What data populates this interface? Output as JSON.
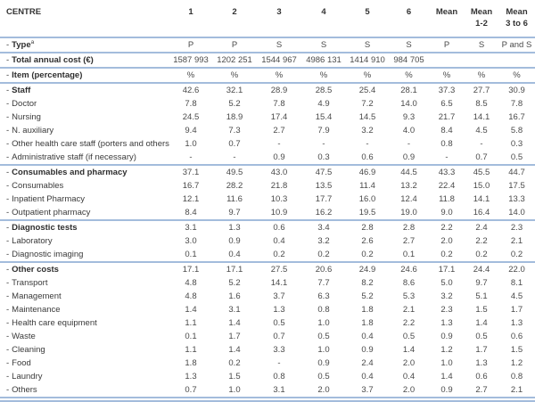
{
  "table": {
    "dash_prefix": "-",
    "corner_label": "CENTRE",
    "columns": [
      {
        "line1": "1",
        "line2": ""
      },
      {
        "line1": "2",
        "line2": ""
      },
      {
        "line1": "3",
        "line2": ""
      },
      {
        "line1": "4",
        "line2": ""
      },
      {
        "line1": "5",
        "line2": ""
      },
      {
        "line1": "6",
        "line2": ""
      },
      {
        "line1": "Mean",
        "line2": ""
      },
      {
        "line1": "Mean",
        "line2": "1-2"
      },
      {
        "line1": "Mean",
        "line2": "3 to 6"
      }
    ],
    "rows": [
      {
        "label": "Type",
        "sup": "a",
        "bold": true,
        "sep": true,
        "values": [
          "P",
          "P",
          "S",
          "S",
          "S",
          "S",
          "P",
          "S",
          "P and S"
        ]
      },
      {
        "label": "Total annual cost (€)",
        "bold": true,
        "sep": true,
        "values": [
          "1587 993",
          "1202 251",
          "1544 967",
          "4986 131",
          "1414 910",
          "984 705",
          "",
          "",
          ""
        ]
      },
      {
        "label": "Item (percentage)",
        "bold": true,
        "sep": true,
        "values": [
          "%",
          "%",
          "%",
          "%",
          "%",
          "%",
          "%",
          "%",
          "%"
        ]
      },
      {
        "label": "Staff",
        "bold": true,
        "values": [
          "42.6",
          "32.1",
          "28.9",
          "28.5",
          "25.4",
          "28.1",
          "37.3",
          "27.7",
          "30.9"
        ]
      },
      {
        "label": "Doctor",
        "values": [
          "7.8",
          "5.2",
          "7.8",
          "4.9",
          "7.2",
          "14.0",
          "6.5",
          "8.5",
          "7.8"
        ]
      },
      {
        "label": "Nursing",
        "values": [
          "24.5",
          "18.9",
          "17.4",
          "15.4",
          "14.5",
          "9.3",
          "21.7",
          "14.1",
          "16.7"
        ]
      },
      {
        "label": "N. auxiliary",
        "values": [
          "9.4",
          "7.3",
          "2.7",
          "7.9",
          "3.2",
          "4.0",
          "8.4",
          "4.5",
          "5.8"
        ]
      },
      {
        "label": "Other health care staff (porters and others)",
        "values": [
          "1.0",
          "0.7",
          "-",
          "-",
          "-",
          "-",
          "0.8",
          "-",
          "0.3"
        ]
      },
      {
        "label": "Administrative staff (if necessary)",
        "sep": true,
        "values": [
          "-",
          "-",
          "0.9",
          "0.3",
          "0.6",
          "0.9",
          "-",
          "0.7",
          "0.5"
        ]
      },
      {
        "label": "Consumables and pharmacy",
        "bold": true,
        "values": [
          "37.1",
          "49.5",
          "43.0",
          "47.5",
          "46.9",
          "44.5",
          "43.3",
          "45.5",
          "44.7"
        ]
      },
      {
        "label": "Consumables",
        "values": [
          "16.7",
          "28.2",
          "21.8",
          "13.5",
          "11.4",
          "13.2",
          "22.4",
          "15.0",
          "17.5"
        ]
      },
      {
        "label": "Inpatient Pharmacy",
        "values": [
          "12.1",
          "11.6",
          "10.3",
          "17.7",
          "16.0",
          "12.4",
          "11.8",
          "14.1",
          "13.3"
        ]
      },
      {
        "label": "Outpatient pharmacy",
        "sep": true,
        "values": [
          "8.4",
          "9.7",
          "10.9",
          "16.2",
          "19.5",
          "19.0",
          "9.0",
          "16.4",
          "14.0"
        ]
      },
      {
        "label": "Diagnostic tests",
        "bold": true,
        "values": [
          "3.1",
          "1.3",
          "0.6",
          "3.4",
          "2.8",
          "2.8",
          "2.2",
          "2.4",
          "2.3"
        ]
      },
      {
        "label": "Laboratory",
        "values": [
          "3.0",
          "0.9",
          "0.4",
          "3.2",
          "2.6",
          "2.7",
          "2.0",
          "2.2",
          "2.1"
        ]
      },
      {
        "label": "Diagnostic imaging",
        "sep": true,
        "values": [
          "0.1",
          "0.4",
          "0.2",
          "0.2",
          "0.2",
          "0.1",
          "0.2",
          "0.2",
          "0.2"
        ]
      },
      {
        "label": "Other costs",
        "bold": true,
        "values": [
          "17.1",
          "17.1",
          "27.5",
          "20.6",
          "24.9",
          "24.6",
          "17.1",
          "24.4",
          "22.0"
        ]
      },
      {
        "label": "Transport",
        "values": [
          "4.8",
          "5.2",
          "14.1",
          "7.7",
          "8.2",
          "8.6",
          "5.0",
          "9.7",
          "8.1"
        ]
      },
      {
        "label": "Management",
        "values": [
          "4.8",
          "1.6",
          "3.7",
          "6.3",
          "5.2",
          "5.3",
          "3.2",
          "5.1",
          "4.5"
        ]
      },
      {
        "label": "Maintenance",
        "values": [
          "1.4",
          "3.1",
          "1.3",
          "0.8",
          "1.8",
          "2.1",
          "2.3",
          "1.5",
          "1.7"
        ]
      },
      {
        "label": "Health care equipment",
        "values": [
          "1.1",
          "1.4",
          "0.5",
          "1.0",
          "1.8",
          "2.2",
          "1.3",
          "1.4",
          "1.3"
        ]
      },
      {
        "label": "Waste",
        "values": [
          "0.1",
          "1.7",
          "0.7",
          "0.5",
          "0.4",
          "0.5",
          "0.9",
          "0.5",
          "0.6"
        ]
      },
      {
        "label": "Cleaning",
        "values": [
          "1.1",
          "1.4",
          "3.3",
          "1.0",
          "0.9",
          "1.4",
          "1.2",
          "1.7",
          "1.5"
        ]
      },
      {
        "label": "Food",
        "values": [
          "1.8",
          "0.2",
          "-",
          "0.9",
          "2.4",
          "2.0",
          "1.0",
          "1.3",
          "1.2"
        ]
      },
      {
        "label": "Laundry",
        "values": [
          "1.3",
          "1.5",
          "0.8",
          "0.5",
          "0.4",
          "0.4",
          "1.4",
          "0.6",
          "0.8"
        ]
      },
      {
        "label": "Others",
        "sep": true,
        "values": [
          "0.7",
          "1.0",
          "3.1",
          "2.0",
          "3.7",
          "2.0",
          "0.9",
          "2.7",
          "2.1"
        ]
      }
    ]
  }
}
